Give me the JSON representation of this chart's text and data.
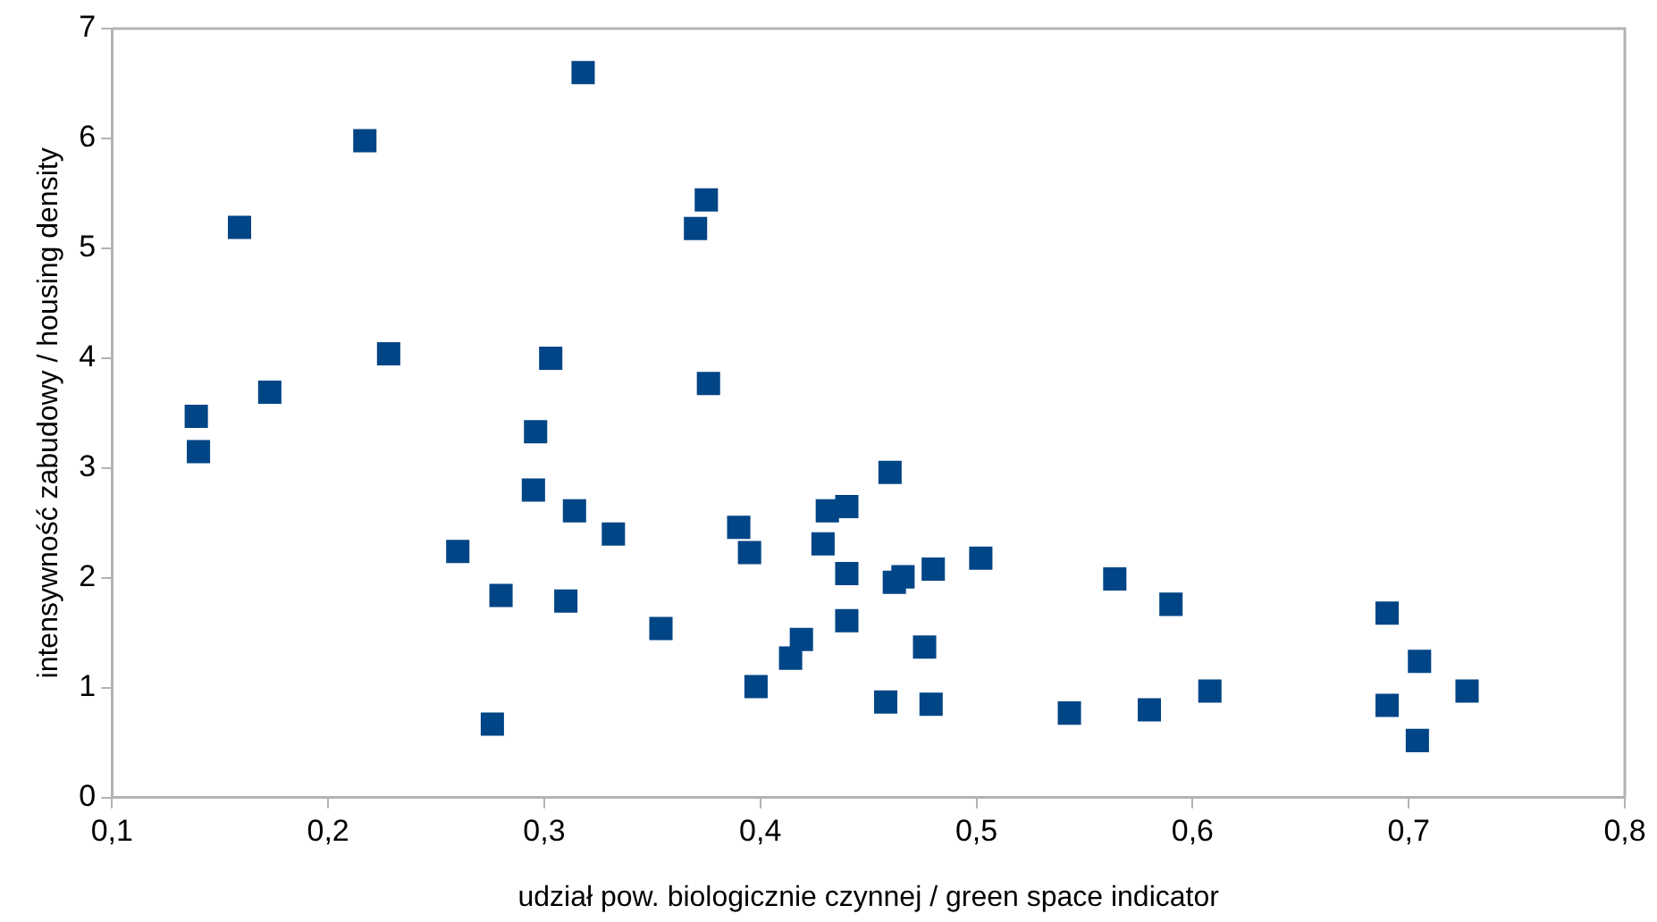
{
  "chart_data": {
    "type": "scatter",
    "xlabel": "udział pow. biologicznie czynnej / green space indicator",
    "ylabel": "intensywność zabudowy / housing density",
    "marker": "square",
    "grid": false,
    "legend": false,
    "xlim": [
      0.1,
      0.8
    ],
    "ylim": [
      0,
      7
    ],
    "xticks": [
      {
        "value": 0.1,
        "label": "0,1"
      },
      {
        "value": 0.2,
        "label": "0,2"
      },
      {
        "value": 0.3,
        "label": "0,3"
      },
      {
        "value": 0.4,
        "label": "0,4"
      },
      {
        "value": 0.5,
        "label": "0,5"
      },
      {
        "value": 0.6,
        "label": "0,6"
      },
      {
        "value": 0.7,
        "label": "0,7"
      },
      {
        "value": 0.8,
        "label": "0,8"
      }
    ],
    "yticks": [
      0,
      1,
      2,
      3,
      4,
      5,
      6,
      7
    ],
    "series": [
      {
        "color": "#004586",
        "x": [
          0.139,
          0.14,
          0.159,
          0.173,
          0.217,
          0.228,
          0.26,
          0.276,
          0.28,
          0.296,
          0.295,
          0.303,
          0.31,
          0.314,
          0.318,
          0.332,
          0.354,
          0.37,
          0.375,
          0.376,
          0.39,
          0.395,
          0.398,
          0.414,
          0.419,
          0.431,
          0.44,
          0.429,
          0.44,
          0.466,
          0.462,
          0.48,
          0.46,
          0.502,
          0.44,
          0.476,
          0.458,
          0.479,
          0.543,
          0.58,
          0.564,
          0.59,
          0.608,
          0.69,
          0.705,
          0.69,
          0.704,
          0.727
        ],
        "values": [
          3.47,
          3.15,
          5.19,
          3.69,
          5.98,
          4.04,
          2.24,
          0.67,
          1.84,
          3.33,
          2.8,
          4.0,
          1.79,
          2.61,
          6.6,
          2.4,
          1.54,
          5.18,
          5.44,
          3.77,
          2.46,
          2.23,
          1.01,
          1.27,
          1.44,
          2.61,
          2.65,
          2.31,
          2.04,
          2.01,
          1.96,
          2.08,
          2.96,
          2.18,
          1.61,
          1.37,
          0.87,
          0.85,
          0.77,
          0.8,
          1.99,
          1.76,
          0.97,
          1.68,
          1.24,
          0.84,
          0.52,
          0.97
        ]
      }
    ]
  }
}
